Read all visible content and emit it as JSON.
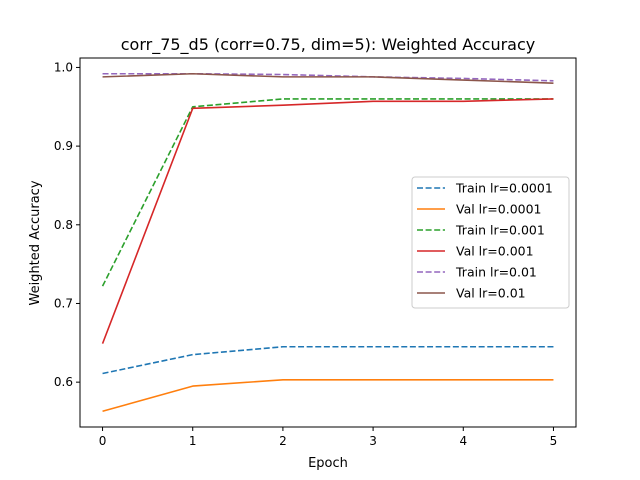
{
  "chart_data": {
    "type": "line",
    "title": "corr_75_d5 (corr=0.75, dim=5): Weighted Accuracy",
    "xlabel": "Epoch",
    "ylabel": "Weighted Accuracy",
    "x": [
      0,
      1,
      2,
      3,
      4,
      5
    ],
    "xticks": [
      "0",
      "1",
      "2",
      "3",
      "4",
      "5"
    ],
    "yticks": [
      "0.6",
      "0.7",
      "0.8",
      "0.9",
      "1.0"
    ],
    "ytick_values": [
      0.6,
      0.7,
      0.8,
      0.9,
      1.0
    ],
    "xlim": [
      -0.25,
      5.25
    ],
    "ylim": [
      0.543,
      1.012
    ],
    "grid": false,
    "legend_position": "right-center",
    "series": [
      {
        "name": "Train lr=0.0001",
        "color": "#1f77b4",
        "dash": "dashed",
        "values": [
          0.611,
          0.635,
          0.645,
          0.645,
          0.645,
          0.645
        ]
      },
      {
        "name": "Val lr=0.0001",
        "color": "#ff7f0e",
        "dash": "solid",
        "values": [
          0.563,
          0.595,
          0.603,
          0.603,
          0.603,
          0.603
        ]
      },
      {
        "name": "Train lr=0.001",
        "color": "#2ca02c",
        "dash": "dashed",
        "values": [
          0.722,
          0.95,
          0.96,
          0.96,
          0.96,
          0.96
        ]
      },
      {
        "name": "Val lr=0.001",
        "color": "#d62728",
        "dash": "solid",
        "values": [
          0.649,
          0.948,
          0.952,
          0.957,
          0.957,
          0.96
        ]
      },
      {
        "name": "Train lr=0.01",
        "color": "#9467bd",
        "dash": "dashed",
        "values": [
          0.992,
          0.992,
          0.991,
          0.988,
          0.986,
          0.983
        ]
      },
      {
        "name": "Val lr=0.01",
        "color": "#8c564b",
        "dash": "solid",
        "values": [
          0.988,
          0.992,
          0.988,
          0.988,
          0.984,
          0.98
        ]
      }
    ]
  }
}
